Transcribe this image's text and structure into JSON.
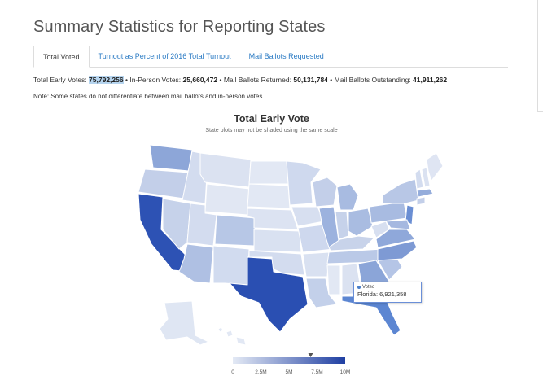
{
  "page": {
    "title": "Summary Statistics for Reporting States"
  },
  "tabs": [
    {
      "label": "Total Voted",
      "active": true
    },
    {
      "label": "Turnout as Percent of 2016 Total Turnout",
      "active": false
    },
    {
      "label": "Mail Ballots Requested",
      "active": false
    }
  ],
  "summary": {
    "early_label": "Total Early Votes:",
    "early_value": "75,792,256",
    "inperson_label": "In-Person Votes:",
    "inperson_value": "25,660,472",
    "returned_label": "Mail Ballots Returned:",
    "returned_value": "50,131,784",
    "outstanding_label": "Mail Ballots Outstanding:",
    "outstanding_value": "41,911,262",
    "separator": "•"
  },
  "note": "Note: Some states do not differentiate between mail ballots and in-person votes.",
  "map": {
    "title": "Total Early Vote",
    "subtitle": "State plots may not be shaded using the same scale",
    "color_scale": [
      "#e4eaf5",
      "#1f3fa2"
    ],
    "legend": {
      "min": 0,
      "max": 10000000,
      "ticks": [
        {
          "value": 0,
          "label": "0"
        },
        {
          "value": 2500000,
          "label": "2.5M"
        },
        {
          "value": 5000000,
          "label": "5M"
        },
        {
          "value": 7500000,
          "label": "7.5M"
        },
        {
          "value": 10000000,
          "label": "10M"
        }
      ],
      "marker_value": 6921358
    },
    "tooltip": {
      "series": "Voted",
      "state": "Florida",
      "value": "6,921,358"
    }
  }
}
